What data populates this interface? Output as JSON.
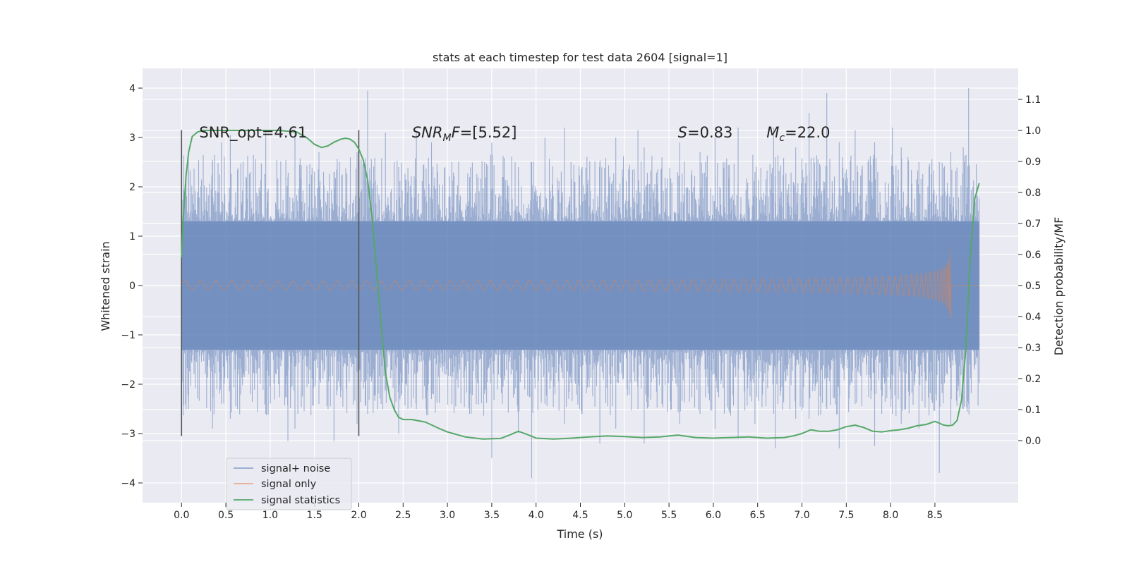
{
  "chart_data": {
    "type": "line",
    "title": "stats at each timestep for test data 2604 [signal=1]",
    "xlabel": "Time (s)",
    "ylabel_left": "Whitened strain",
    "ylabel_right": "Detection probability/MF",
    "xlim": [
      -0.44,
      9.44
    ],
    "ylim_left": [
      -4.4,
      4.4
    ],
    "ylim_right": [
      -0.2,
      1.2
    ],
    "xticks": [
      "0.0",
      "0.5",
      "1.0",
      "1.5",
      "2.0",
      "2.5",
      "3.0",
      "3.5",
      "4.0",
      "4.5",
      "5.0",
      "5.5",
      "6.0",
      "6.5",
      "7.0",
      "7.5",
      "8.0",
      "8.5"
    ],
    "yticks_left": [
      "4",
      "3",
      "2",
      "1",
      "0",
      "−1",
      "−2",
      "−3",
      "−4"
    ],
    "yticks_right": [
      "1.1",
      "1.0",
      "0.9",
      "0.8",
      "0.7",
      "0.6",
      "0.5",
      "0.4",
      "0.3",
      "0.2",
      "0.1",
      "0.0"
    ],
    "grid": true,
    "legend_placement": "lower-left",
    "vertical_lines": [
      0.0,
      2.0
    ],
    "vertical_lines_ylim": [
      -3.05,
      3.15
    ],
    "annotations": [
      {
        "x": 0.2,
        "y": 3.1,
        "text": "SNR_opt=4.61"
      },
      {
        "x": 2.6,
        "y": 3.1,
        "text_pre": "SNR",
        "text_sub": "M",
        "text_italic_after": "F",
        "text_post": "=[5.52]"
      },
      {
        "x": 5.6,
        "y": 3.1,
        "text_italic": "S",
        "text_post": "=0.83"
      },
      {
        "x": 6.6,
        "y": 3.1,
        "text_italic": "M",
        "text_sub": "c",
        "text_post": "=22.0"
      }
    ],
    "series": [
      {
        "name": "signal+ noise",
        "color": "#4c72b0",
        "axis": "left",
        "x_range": [
          0.0,
          9.0
        ],
        "envelope_core": [
          -1.3,
          1.3
        ],
        "spikes": [
          [
            0.08,
            2.35,
            -2.5
          ],
          [
            0.18,
            1.9,
            -2.2
          ],
          [
            0.35,
            2.5,
            -2.9
          ],
          [
            0.45,
            2.9,
            -2.4
          ],
          [
            0.55,
            3.05,
            -2.7
          ],
          [
            0.78,
            2.3,
            -2.2
          ],
          [
            0.95,
            3.1,
            -2.6
          ],
          [
            1.2,
            2.2,
            -3.15
          ],
          [
            1.28,
            3.1,
            -2.9
          ],
          [
            1.55,
            2.7,
            -2.4
          ],
          [
            1.72,
            2.3,
            -3.15
          ],
          [
            1.98,
            2.7,
            -2.8
          ],
          [
            2.1,
            3.95,
            -2.6
          ],
          [
            2.3,
            3.1,
            -2.1
          ],
          [
            2.45,
            2.4,
            -3.0
          ],
          [
            2.65,
            3.1,
            -2.5
          ],
          [
            2.82,
            2.9,
            -2.3
          ],
          [
            3.05,
            2.5,
            -2.4
          ],
          [
            3.25,
            2.2,
            -2.6
          ],
          [
            3.42,
            2.5,
            -2.2
          ],
          [
            3.5,
            2.9,
            -3.5
          ],
          [
            3.62,
            2.2,
            -2.4
          ],
          [
            3.8,
            2.4,
            -3.0
          ],
          [
            3.95,
            2.5,
            -3.9
          ],
          [
            4.1,
            3.0,
            -2.4
          ],
          [
            4.32,
            3.2,
            -2.8
          ],
          [
            4.52,
            2.4,
            -2.6
          ],
          [
            4.72,
            2.5,
            -3.2
          ],
          [
            4.9,
            3.0,
            -2.9
          ],
          [
            5.15,
            3.15,
            -2.5
          ],
          [
            5.22,
            2.8,
            -3.2
          ],
          [
            5.42,
            2.6,
            -2.4
          ],
          [
            5.62,
            2.9,
            -2.8
          ],
          [
            5.85,
            2.7,
            -2.6
          ],
          [
            6.02,
            3.0,
            -2.9
          ],
          [
            6.28,
            3.2,
            -3.1
          ],
          [
            6.47,
            2.3,
            -2.8
          ],
          [
            6.68,
            3.2,
            -2.6
          ],
          [
            6.7,
            2.6,
            -3.3
          ],
          [
            6.93,
            2.8,
            -2.7
          ],
          [
            7.08,
            3.5,
            -2.7
          ],
          [
            7.28,
            3.9,
            -2.5
          ],
          [
            7.42,
            2.9,
            -3.3
          ],
          [
            7.6,
            3.15,
            -2.4
          ],
          [
            7.82,
            2.9,
            -3.25
          ],
          [
            8.02,
            3.2,
            -2.6
          ],
          [
            8.12,
            2.8,
            -2.8
          ],
          [
            8.32,
            2.5,
            -2.9
          ],
          [
            8.55,
            2.5,
            -3.8
          ],
          [
            8.68,
            2.7,
            -2.8
          ],
          [
            8.82,
            2.8,
            -2.5
          ],
          [
            8.88,
            4.0,
            -2.4
          ]
        ]
      },
      {
        "name": "signal only",
        "color": "#dd8452",
        "axis": "left",
        "x_range": [
          0.0,
          8.68
        ],
        "peak_amplitude": 1.0,
        "min_value": -0.95
      },
      {
        "name": "signal statistics",
        "color": "#55a868",
        "axis": "right",
        "x": [
          0.0,
          0.02,
          0.05,
          0.08,
          0.12,
          0.18,
          0.25,
          0.35,
          0.5,
          0.7,
          0.9,
          1.1,
          1.3,
          1.42,
          1.5,
          1.58,
          1.65,
          1.72,
          1.8,
          1.85,
          1.9,
          1.95,
          2.0,
          2.05,
          2.1,
          2.15,
          2.2,
          2.25,
          2.3,
          2.35,
          2.4,
          2.45,
          2.5,
          2.6,
          2.75,
          2.9,
          3.0,
          3.2,
          3.4,
          3.6,
          3.7,
          3.8,
          3.9,
          4.0,
          4.2,
          4.4,
          4.6,
          4.8,
          5.0,
          5.2,
          5.4,
          5.6,
          5.8,
          6.0,
          6.2,
          6.4,
          6.6,
          6.8,
          6.9,
          7.0,
          7.1,
          7.2,
          7.3,
          7.4,
          7.5,
          7.6,
          7.7,
          7.8,
          7.9,
          8.0,
          8.1,
          8.2,
          8.3,
          8.4,
          8.5,
          8.6,
          8.65,
          8.7,
          8.75,
          8.8,
          8.85,
          8.9,
          8.95,
          9.0
        ],
        "values": [
          0.59,
          0.72,
          0.85,
          0.93,
          0.98,
          0.995,
          1.0,
          1.0,
          1.0,
          1.0,
          1.0,
          1.0,
          0.995,
          0.975,
          0.955,
          0.945,
          0.95,
          0.962,
          0.972,
          0.975,
          0.972,
          0.962,
          0.94,
          0.905,
          0.84,
          0.72,
          0.55,
          0.38,
          0.22,
          0.14,
          0.1,
          0.075,
          0.068,
          0.068,
          0.06,
          0.04,
          0.028,
          0.012,
          0.005,
          0.007,
          0.018,
          0.03,
          0.02,
          0.008,
          0.005,
          0.008,
          0.012,
          0.015,
          0.013,
          0.01,
          0.012,
          0.018,
          0.01,
          0.008,
          0.01,
          0.012,
          0.008,
          0.01,
          0.015,
          0.023,
          0.035,
          0.03,
          0.03,
          0.035,
          0.045,
          0.05,
          0.042,
          0.03,
          0.028,
          0.032,
          0.035,
          0.04,
          0.048,
          0.052,
          0.062,
          0.05,
          0.048,
          0.05,
          0.065,
          0.13,
          0.3,
          0.6,
          0.78,
          0.83
        ]
      }
    ]
  }
}
